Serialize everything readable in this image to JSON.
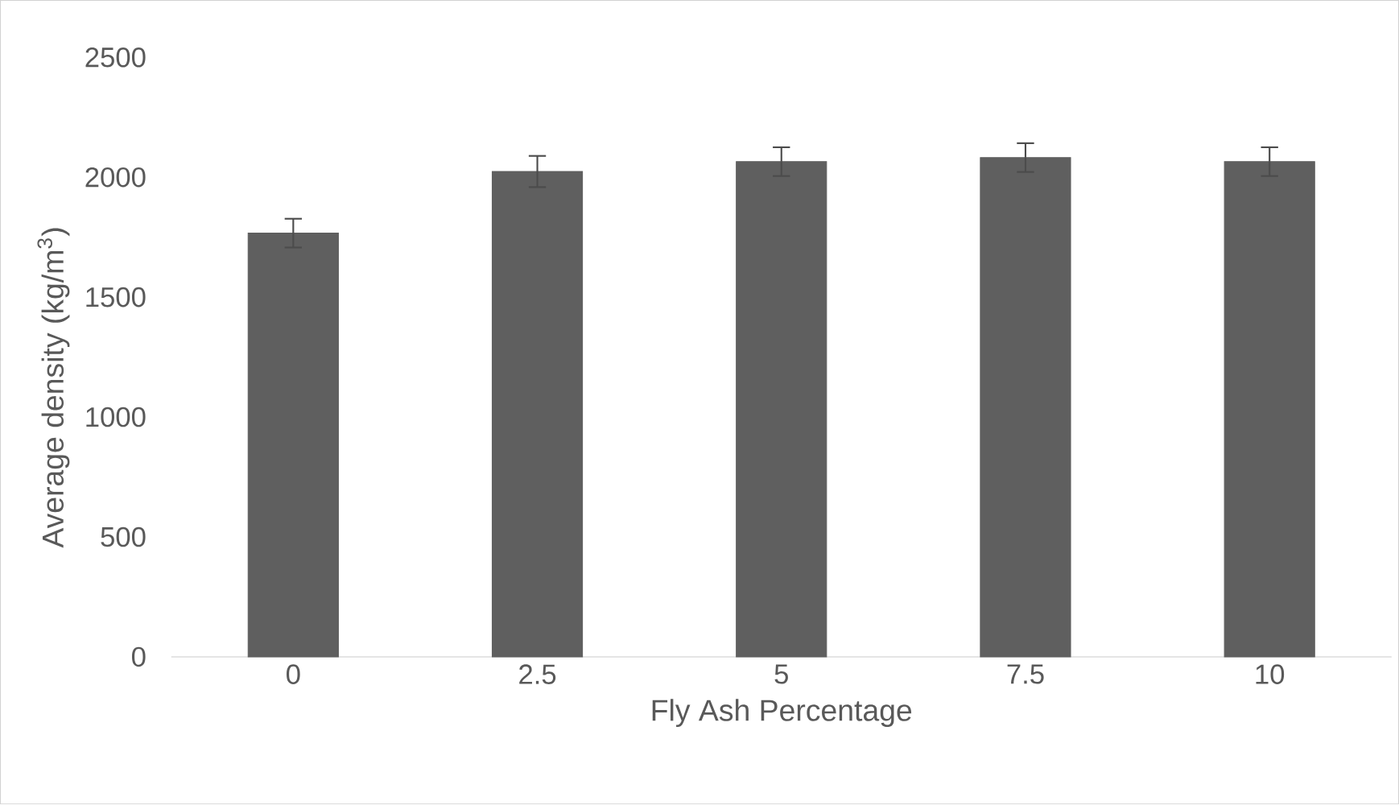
{
  "chart_data": {
    "type": "bar",
    "xlabel": "Fly Ash Percentage",
    "ylabel": "Average density (kg/m$^{3}$)",
    "categories": [
      "0",
      "2.5",
      "5",
      "7.5",
      "10"
    ],
    "values": [
      1767,
      2024,
      2065,
      2082,
      2065
    ],
    "errors": [
      60,
      65,
      60,
      60,
      60
    ],
    "color": "#5f5f5f",
    "ylim": [
      0,
      2500
    ],
    "yticks": [
      0,
      500,
      1000,
      1500,
      2000,
      2500
    ],
    "grid": false
  }
}
